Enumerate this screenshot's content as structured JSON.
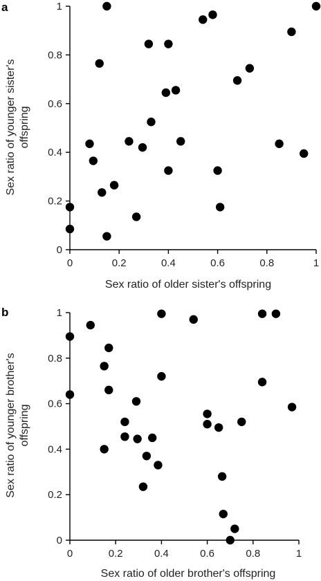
{
  "chart_data": [
    {
      "type": "scatter",
      "panel_label": "a",
      "xlabel": "Sex ratio of older sister's offspring",
      "ylabel": "Sex ratio of younger sister's offspring",
      "ylabel_lines": [
        "Sex ratio of younger sister's",
        "offspring"
      ],
      "xlim": [
        0,
        1
      ],
      "ylim": [
        0,
        1
      ],
      "xticks": [
        "0",
        "0.2",
        "0.4",
        "0.6",
        "0.8",
        "1"
      ],
      "yticks": [
        "0",
        "0.2",
        "0.4",
        "0.6",
        "0.8",
        "1"
      ],
      "grid": false,
      "points": [
        {
          "x": 0.0,
          "y": 0.085
        },
        {
          "x": 0.0,
          "y": 0.175
        },
        {
          "x": 0.08,
          "y": 0.435
        },
        {
          "x": 0.095,
          "y": 0.365
        },
        {
          "x": 0.12,
          "y": 0.765
        },
        {
          "x": 0.13,
          "y": 0.235
        },
        {
          "x": 0.15,
          "y": 1.0
        },
        {
          "x": 0.15,
          "y": 0.055
        },
        {
          "x": 0.18,
          "y": 0.265
        },
        {
          "x": 0.24,
          "y": 0.445
        },
        {
          "x": 0.27,
          "y": 0.135
        },
        {
          "x": 0.295,
          "y": 0.42
        },
        {
          "x": 0.32,
          "y": 0.845
        },
        {
          "x": 0.33,
          "y": 0.525
        },
        {
          "x": 0.39,
          "y": 0.645
        },
        {
          "x": 0.4,
          "y": 0.845
        },
        {
          "x": 0.4,
          "y": 0.325
        },
        {
          "x": 0.43,
          "y": 0.655
        },
        {
          "x": 0.45,
          "y": 0.445
        },
        {
          "x": 0.54,
          "y": 0.945
        },
        {
          "x": 0.58,
          "y": 0.965
        },
        {
          "x": 0.6,
          "y": 0.325
        },
        {
          "x": 0.61,
          "y": 0.175
        },
        {
          "x": 0.68,
          "y": 0.695
        },
        {
          "x": 0.73,
          "y": 0.745
        },
        {
          "x": 0.85,
          "y": 0.435
        },
        {
          "x": 0.9,
          "y": 0.895
        },
        {
          "x": 0.95,
          "y": 0.395
        },
        {
          "x": 1.0,
          "y": 1.0
        }
      ]
    },
    {
      "type": "scatter",
      "panel_label": "b",
      "xlabel": "Sex ratio of older brother's offspring",
      "ylabel": "Sex ratio of younger brother's offspring",
      "ylabel_lines": [
        "Sex ratio of younger brother's",
        "offspring"
      ],
      "xlim": [
        0,
        1
      ],
      "ylim": [
        0,
        1
      ],
      "xticks": [
        "0",
        "0.2",
        "0.4",
        "0.6",
        "0.8",
        "1"
      ],
      "yticks": [
        "0",
        "0.2",
        "0.4",
        "0.6",
        "0.8",
        "1"
      ],
      "grid": false,
      "points": [
        {
          "x": 0.0,
          "y": 0.895
        },
        {
          "x": 0.0,
          "y": 0.64
        },
        {
          "x": 0.09,
          "y": 0.945
        },
        {
          "x": 0.15,
          "y": 0.765
        },
        {
          "x": 0.15,
          "y": 0.4
        },
        {
          "x": 0.17,
          "y": 0.845
        },
        {
          "x": 0.17,
          "y": 0.66
        },
        {
          "x": 0.24,
          "y": 0.52
        },
        {
          "x": 0.24,
          "y": 0.455
        },
        {
          "x": 0.29,
          "y": 0.61
        },
        {
          "x": 0.295,
          "y": 0.445
        },
        {
          "x": 0.32,
          "y": 0.235
        },
        {
          "x": 0.335,
          "y": 0.37
        },
        {
          "x": 0.36,
          "y": 0.45
        },
        {
          "x": 0.385,
          "y": 0.33
        },
        {
          "x": 0.4,
          "y": 0.995
        },
        {
          "x": 0.4,
          "y": 0.72
        },
        {
          "x": 0.54,
          "y": 0.97
        },
        {
          "x": 0.6,
          "y": 0.555
        },
        {
          "x": 0.6,
          "y": 0.51
        },
        {
          "x": 0.65,
          "y": 0.495
        },
        {
          "x": 0.665,
          "y": 0.28
        },
        {
          "x": 0.67,
          "y": 0.115
        },
        {
          "x": 0.7,
          "y": 0.0
        },
        {
          "x": 0.72,
          "y": 0.05
        },
        {
          "x": 0.75,
          "y": 0.52
        },
        {
          "x": 0.84,
          "y": 0.995
        },
        {
          "x": 0.84,
          "y": 0.695
        },
        {
          "x": 0.9,
          "y": 0.995
        },
        {
          "x": 0.97,
          "y": 0.585
        }
      ]
    }
  ]
}
